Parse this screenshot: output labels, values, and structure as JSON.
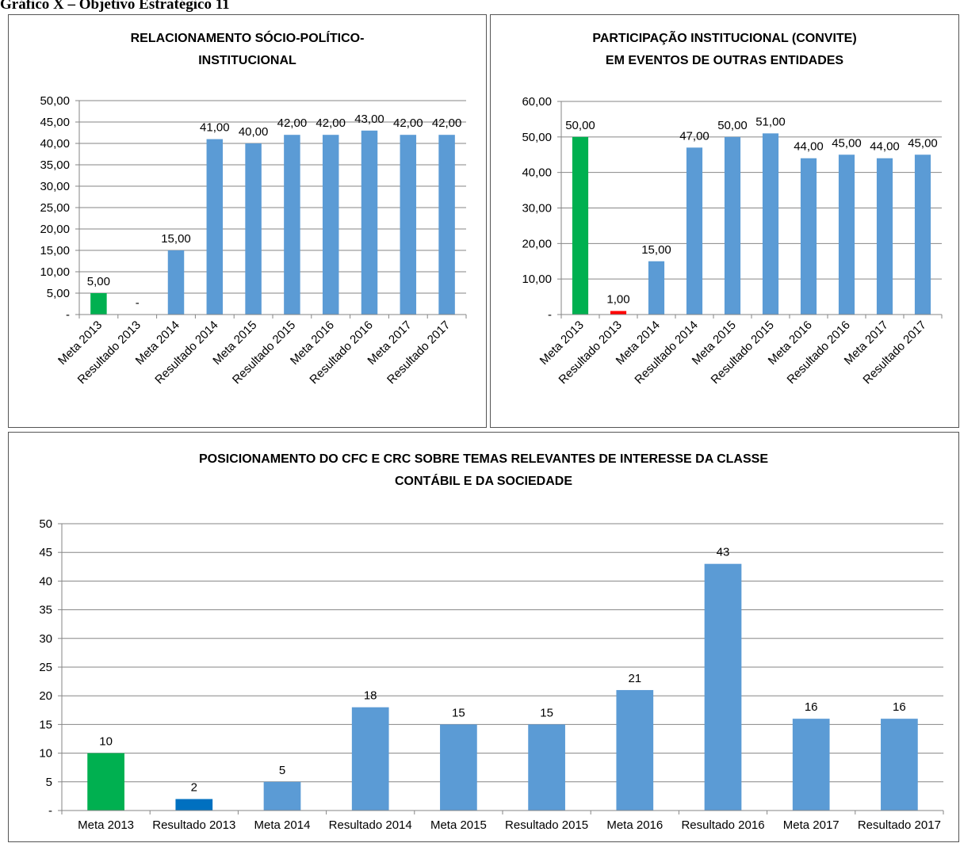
{
  "page_title": "Gráfico X – Objetivo Estratégico 11",
  "chart_data": [
    {
      "type": "bar",
      "title": [
        "RELACIONAMENTO SÓCIO-POLÍTICO-",
        "INSTITUCIONAL"
      ],
      "categories": [
        "Meta 2013",
        "Resultado 2013",
        "Meta 2014",
        "Resultado 2014",
        "Meta 2015",
        "Resultado 2015",
        "Meta 2016",
        "Resultado 2016",
        "Meta 2017",
        "Resultado 2017"
      ],
      "values": [
        5,
        0,
        15,
        41,
        40,
        42,
        42,
        43,
        42,
        42
      ],
      "value_labels": [
        "5,00",
        "-",
        "15,00",
        "41,00",
        "40,00",
        "42,00",
        "42,00",
        "43,00",
        "42,00",
        "42,00"
      ],
      "colors": [
        "#00b050",
        "#5b9bd5",
        "#5b9bd5",
        "#5b9bd5",
        "#5b9bd5",
        "#5b9bd5",
        "#5b9bd5",
        "#5b9bd5",
        "#5b9bd5",
        "#5b9bd5"
      ],
      "ylim": [
        0,
        50
      ],
      "yticks": [
        {
          "value": 0,
          "label": "-"
        },
        {
          "value": 5,
          "label": "5,00"
        },
        {
          "value": 10,
          "label": "10,00"
        },
        {
          "value": 15,
          "label": "15,00"
        },
        {
          "value": 20,
          "label": "20,00"
        },
        {
          "value": 25,
          "label": "25,00"
        },
        {
          "value": 30,
          "label": "30,00"
        },
        {
          "value": 35,
          "label": "35,00"
        },
        {
          "value": 40,
          "label": "40,00"
        },
        {
          "value": 45,
          "label": "45,00"
        },
        {
          "value": 50,
          "label": "50,00"
        }
      ],
      "grid": true,
      "rotate_labels": true
    },
    {
      "type": "bar",
      "title": [
        "PARTICIPAÇÃO INSTITUCIONAL (CONVITE)",
        "EM EVENTOS DE OUTRAS ENTIDADES"
      ],
      "categories": [
        "Meta 2013",
        "Resultado 2013",
        "Meta 2014",
        "Resultado 2014",
        "Meta 2015",
        "Resultado 2015",
        "Meta 2016",
        "Resultado 2016",
        "Meta 2017",
        "Resultado 2017"
      ],
      "values": [
        50,
        1,
        15,
        47,
        50,
        51,
        44,
        45,
        44,
        45
      ],
      "value_labels": [
        "50,00",
        "1,00",
        "15,00",
        "47,00",
        "50,00",
        "51,00",
        "44,00",
        "45,00",
        "44,00",
        "45,00"
      ],
      "colors": [
        "#00b050",
        "#ff0000",
        "#5b9bd5",
        "#5b9bd5",
        "#5b9bd5",
        "#5b9bd5",
        "#5b9bd5",
        "#5b9bd5",
        "#5b9bd5",
        "#5b9bd5"
      ],
      "ylim": [
        0,
        60
      ],
      "yticks": [
        {
          "value": 0,
          "label": "-"
        },
        {
          "value": 10,
          "label": "10,00"
        },
        {
          "value": 20,
          "label": "20,00"
        },
        {
          "value": 30,
          "label": "30,00"
        },
        {
          "value": 40,
          "label": "40,00"
        },
        {
          "value": 50,
          "label": "50,00"
        },
        {
          "value": 60,
          "label": "60,00"
        }
      ],
      "grid": true,
      "rotate_labels": true
    },
    {
      "type": "bar",
      "title": [
        "POSICIONAMENTO DO CFC E CRC SOBRE TEMAS RELEVANTES DE INTERESSE DA CLASSE",
        "CONTÁBIL E DA SOCIEDADE"
      ],
      "categories": [
        "Meta 2013",
        "Resultado 2013",
        "Meta 2014",
        "Resultado 2014",
        "Meta 2015",
        "Resultado 2015",
        "Meta 2016",
        "Resultado 2016",
        "Meta 2017",
        "Resultado 2017"
      ],
      "values": [
        10,
        2,
        5,
        18,
        15,
        15,
        21,
        43,
        16,
        16
      ],
      "colors": [
        "#00b050",
        "#0070c0",
        "#5b9bd5",
        "#5b9bd5",
        "#5b9bd5",
        "#5b9bd5",
        "#5b9bd5",
        "#5b9bd5",
        "#5b9bd5",
        "#5b9bd5"
      ],
      "ylim": [
        0,
        50
      ],
      "yticks": [
        {
          "value": 0,
          "label": "-"
        },
        5,
        10,
        15,
        20,
        25,
        30,
        35,
        40,
        45,
        50
      ],
      "grid": true,
      "rotate_labels": false
    }
  ]
}
